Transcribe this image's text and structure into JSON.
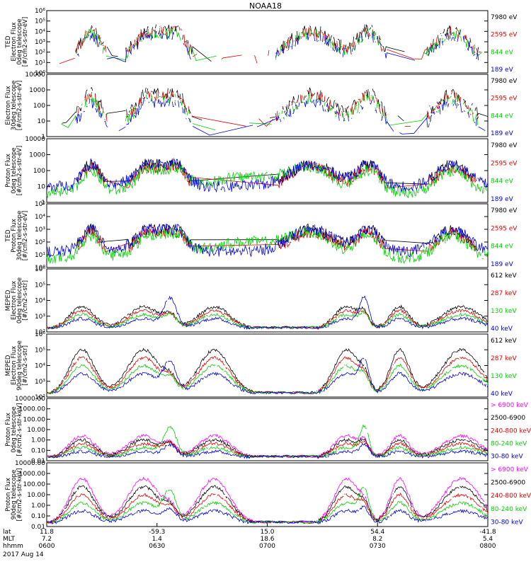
{
  "chart_data": {
    "type": "line",
    "title": "NOAA18",
    "date_label": "2017 Aug 14",
    "time_axis": {
      "row_labels": [
        "lat",
        "MLT",
        "hhmm"
      ],
      "ticks": [
        {
          "lat": "11.8",
          "mlt": "7.2",
          "hhmm": "0600"
        },
        {
          "lat": "-59.3",
          "mlt": "1.4",
          "hhmm": "0630"
        },
        {
          "lat": "15.0",
          "mlt": "18.6",
          "hhmm": "0700"
        },
        {
          "lat": "54.4",
          "mlt": "8.2",
          "hhmm": "0730"
        },
        {
          "lat": "-41.8",
          "mlt": "5.4",
          "hhmm": "0800"
        }
      ]
    },
    "panels": [
      {
        "ylabel": [
          "TED",
          "Electron Flux",
          "0deg telescope",
          "[#/cm2-s-str-eV]"
        ],
        "scale": "log",
        "ylim": [
          1,
          1000000
        ],
        "yticks": [
          "10⁰",
          "10¹",
          "10²",
          "10³",
          "10⁴",
          "10⁵",
          "10⁶"
        ],
        "legend": [
          {
            "label": "7980 eV",
            "color": "#000000"
          },
          {
            "label": "2595 eV",
            "color": "#e00000"
          },
          {
            "label": "844 eV",
            "color": "#00d000"
          },
          {
            "label": "189 eV",
            "color": "#0000e0"
          }
        ]
      },
      {
        "ylabel": [
          "Electron Flux",
          "30deg telescope",
          "[#/cm2-s-str-eV]"
        ],
        "scale": "log",
        "ylim": [
          1,
          10000
        ],
        "yticks": [
          "1",
          "10",
          "100",
          "1000",
          "10000"
        ],
        "legend": [
          {
            "label": "7980 eV",
            "color": "#000000"
          },
          {
            "label": "2595 eV",
            "color": "#e00000"
          },
          {
            "label": "844 eV",
            "color": "#00d000"
          },
          {
            "label": "189 eV",
            "color": "#0000e0"
          }
        ]
      },
      {
        "ylabel": [
          "Proton Flux",
          "0deg telescope",
          "[#/cm2-s-str-eV]"
        ],
        "scale": "log",
        "ylim": [
          1,
          10000
        ],
        "yticks": [
          "1",
          "10",
          "100",
          "1000",
          "10000"
        ],
        "legend": [
          {
            "label": "7980 eV",
            "color": "#000000"
          },
          {
            "label": "2595 eV",
            "color": "#e00000"
          },
          {
            "label": "844 eV",
            "color": "#00d000"
          },
          {
            "label": "189 eV",
            "color": "#0000e0"
          }
        ]
      },
      {
        "ylabel": [
          "TED",
          "Proton Flux",
          "30deg telescope",
          "[#/cm2-s-str-eV]"
        ],
        "scale": "log",
        "ylim": [
          1,
          100000
        ],
        "yticks": [
          "10⁰",
          "10¹",
          "10²",
          "10³",
          "10⁴",
          "10⁵"
        ],
        "legend": [
          {
            "label": "7980 eV",
            "color": "#000000"
          },
          {
            "label": "2595 eV",
            "color": "#e00000"
          },
          {
            "label": "844 eV",
            "color": "#00d000"
          },
          {
            "label": "189 eV",
            "color": "#0000e0"
          }
        ]
      },
      {
        "ylabel": [
          "MEPED",
          "Electron Flux",
          "0deg telescope",
          "[#/cm2-s-str]"
        ],
        "scale": "log",
        "ylim": [
          100,
          1000000
        ],
        "yticks": [
          "10²",
          "10³",
          "10⁴",
          "10⁵",
          "10⁶"
        ],
        "legend": [
          {
            "label": "612 keV",
            "color": "#000000"
          },
          {
            "label": "287 keV",
            "color": "#e00000"
          },
          {
            "label": "130 keV",
            "color": "#00d000"
          },
          {
            "label": "40 keV",
            "color": "#0000e0"
          }
        ]
      },
      {
        "ylabel": [
          "MEPED",
          "Electron Flux",
          "90deg telescope",
          "[#/cm2-s-str]"
        ],
        "scale": "log",
        "ylim": [
          100,
          1000000
        ],
        "yticks": [
          "10²",
          "10³",
          "10⁴",
          "10⁵",
          "10⁶"
        ],
        "legend": [
          {
            "label": "612 keV",
            "color": "#000000"
          },
          {
            "label": "287 keV",
            "color": "#e00000"
          },
          {
            "label": "130 keV",
            "color": "#00d000"
          },
          {
            "label": "40 keV",
            "color": "#0000e0"
          }
        ]
      },
      {
        "ylabel": [
          "Proton Flux",
          "0deg telescope",
          "[#/cm2-s-str-keV]"
        ],
        "scale": "log",
        "ylim": [
          0.01,
          10000
        ],
        "yticks": [
          "0.01",
          "0.10",
          "1.00",
          "10.00",
          "100.00",
          "1000.00",
          "10000.00"
        ],
        "legend": [
          {
            "label": "> 6900 keV",
            "color": "#ff00ff"
          },
          {
            "label": "2500-6900",
            "color": "#000000"
          },
          {
            "label": "240-800 keV",
            "color": "#e00000"
          },
          {
            "label": "80-240 keV",
            "color": "#00d000"
          },
          {
            "label": "30-80 keV",
            "color": "#0000e0"
          }
        ]
      },
      {
        "ylabel": [
          "Proton Flux",
          "90deg telescope",
          "[#/cm2-s-str-keV]"
        ],
        "scale": "log",
        "ylim": [
          0.01,
          10000
        ],
        "yticks": [
          "0.01",
          "0.10",
          "1.00",
          "10.00",
          "100.00",
          "1000.00",
          "10000.00"
        ],
        "legend": [
          {
            "label": "> 6900 keV",
            "color": "#ff00ff"
          },
          {
            "label": "2500-6900",
            "color": "#000000"
          },
          {
            "label": "240-800 keV",
            "color": "#e00000"
          },
          {
            "label": "80-240 keV",
            "color": "#00d000"
          },
          {
            "label": "30-80 keV",
            "color": "#0000e0"
          }
        ]
      }
    ]
  }
}
